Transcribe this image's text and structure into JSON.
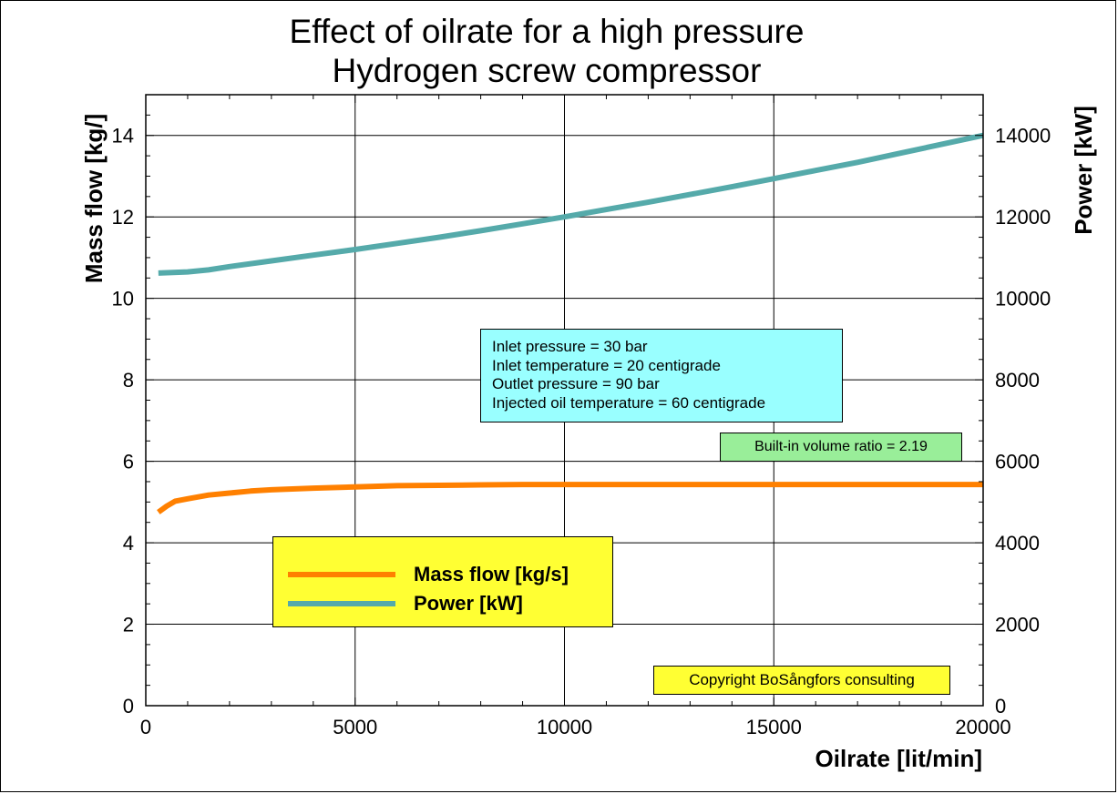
{
  "chart_data": {
    "type": "line",
    "title": [
      "Effect of oilrate for a high pressure",
      "Hydrogen screw compressor"
    ],
    "xlabel": "Oilrate [lit/min]",
    "ylabel": "Mass flow [kg/]",
    "y2label": "Power [kW]",
    "xlim": [
      0,
      20000
    ],
    "ylim": [
      0,
      15
    ],
    "y2lim": [
      0,
      15000
    ],
    "xticks": [
      0,
      5000,
      10000,
      15000,
      20000
    ],
    "yticks": [
      0,
      2,
      4,
      6,
      8,
      10,
      12,
      14
    ],
    "y2ticks": [
      0,
      2000,
      4000,
      6000,
      8000,
      10000,
      12000,
      14000
    ],
    "grid": true,
    "series": [
      {
        "name": "Mass flow [kg/s]",
        "axis": "left",
        "color": "#ff8000",
        "x": [
          300,
          500,
          700,
          1000,
          1500,
          2000,
          2500,
          3000,
          4000,
          5000,
          6000,
          7000,
          8000,
          9000,
          10000,
          12000,
          14000,
          16000,
          18000,
          20000
        ],
        "y": [
          4.75,
          4.9,
          5.02,
          5.08,
          5.17,
          5.22,
          5.27,
          5.3,
          5.34,
          5.37,
          5.4,
          5.41,
          5.42,
          5.43,
          5.43,
          5.43,
          5.43,
          5.43,
          5.43,
          5.43
        ]
      },
      {
        "name": "Power [kW]",
        "axis": "right",
        "color": "#55aaaa",
        "x": [
          300,
          1000,
          1500,
          2000,
          3000,
          4000,
          5000,
          6000,
          7000,
          8000,
          9000,
          10000,
          11000,
          12000,
          13000,
          14000,
          15000,
          16000,
          17000,
          18000,
          19000,
          20000
        ],
        "y": [
          10620,
          10650,
          10700,
          10780,
          10920,
          11060,
          11200,
          11350,
          11500,
          11660,
          11830,
          12000,
          12180,
          12360,
          12550,
          12740,
          12940,
          13140,
          13340,
          13560,
          13780,
          14000
        ]
      }
    ],
    "legend": {
      "position": "lower-left"
    },
    "annotations": {
      "conditions": [
        "Inlet pressure = 30 bar",
        "Inlet temperature = 20 centigrade",
        "Outlet pressure = 90 bar",
        "Injected oil temperature = 60 centigrade"
      ],
      "volume_ratio": "Built-in volume ratio = 2.19",
      "copyright": "Copyright BoSångfors consulting"
    }
  }
}
